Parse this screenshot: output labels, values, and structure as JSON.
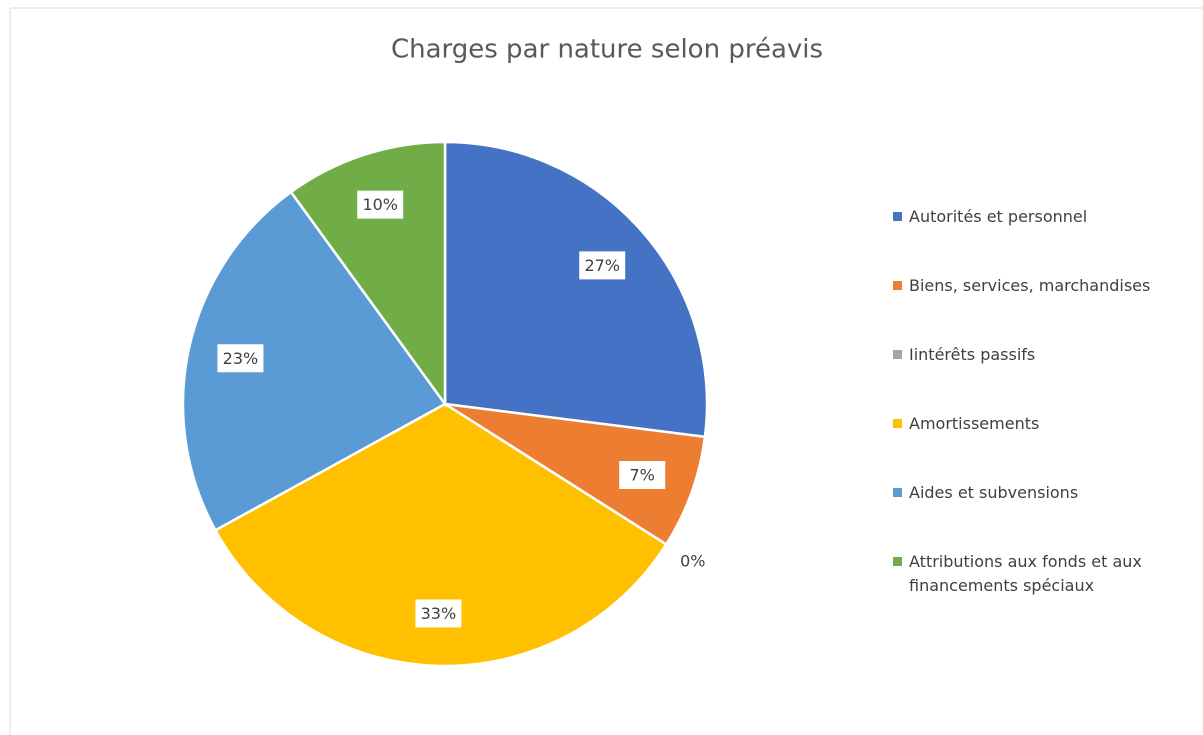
{
  "chart_data": {
    "type": "pie",
    "title": "Charges par nature selon préavis",
    "categories": [
      "Autorités et personnel",
      "Biens, services, marchandises",
      "Iintérêts passifs",
      "Amortissements",
      "Aides et subvensions",
      "Attributions aux fonds et aux financements spéciaux"
    ],
    "values": [
      27,
      7,
      0,
      33,
      23,
      10
    ],
    "value_labels": [
      "27%",
      "7%",
      "0%",
      "33%",
      "23%",
      "10%"
    ],
    "colors": [
      "#4472c4",
      "#ed7d31",
      "#a5a5a5",
      "#ffc000",
      "#5b9bd5",
      "#70ad47"
    ],
    "legend": "right"
  }
}
